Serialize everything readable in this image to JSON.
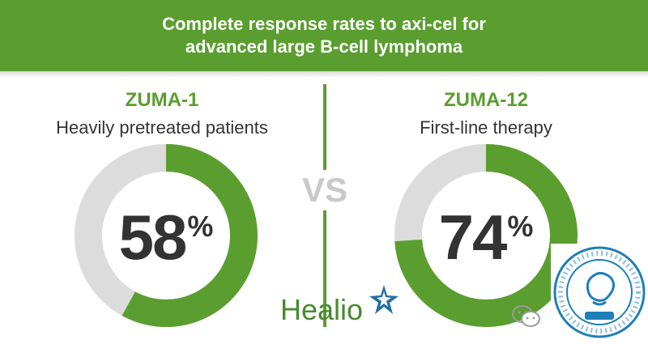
{
  "header": {
    "title_line1": "Complete response rates to axi-cel for",
    "title_line2": "advanced large B-cell lymphoma"
  },
  "vs_label": "VS",
  "brand": {
    "logo_text": "Healio",
    "accent": "#5a9e2f",
    "ring_bg": "#dcdcdc",
    "text": "#333333",
    "star": "#1f6fa8"
  },
  "chart_data": [
    {
      "type": "pie",
      "study": "ZUMA-1",
      "subtitle": "Heavily pretreated patients",
      "value": 58,
      "value_label": "58",
      "unit": "%"
    },
    {
      "type": "pie",
      "study": "ZUMA-12",
      "subtitle": "First-line therapy",
      "value": 74,
      "value_label": "74",
      "unit": "%"
    }
  ],
  "watermark": {
    "icon": "wechat-icon",
    "stamp_icon": "hospital-seal-icon",
    "stamp_text": "北京中健长和心脑血管病研究院"
  }
}
